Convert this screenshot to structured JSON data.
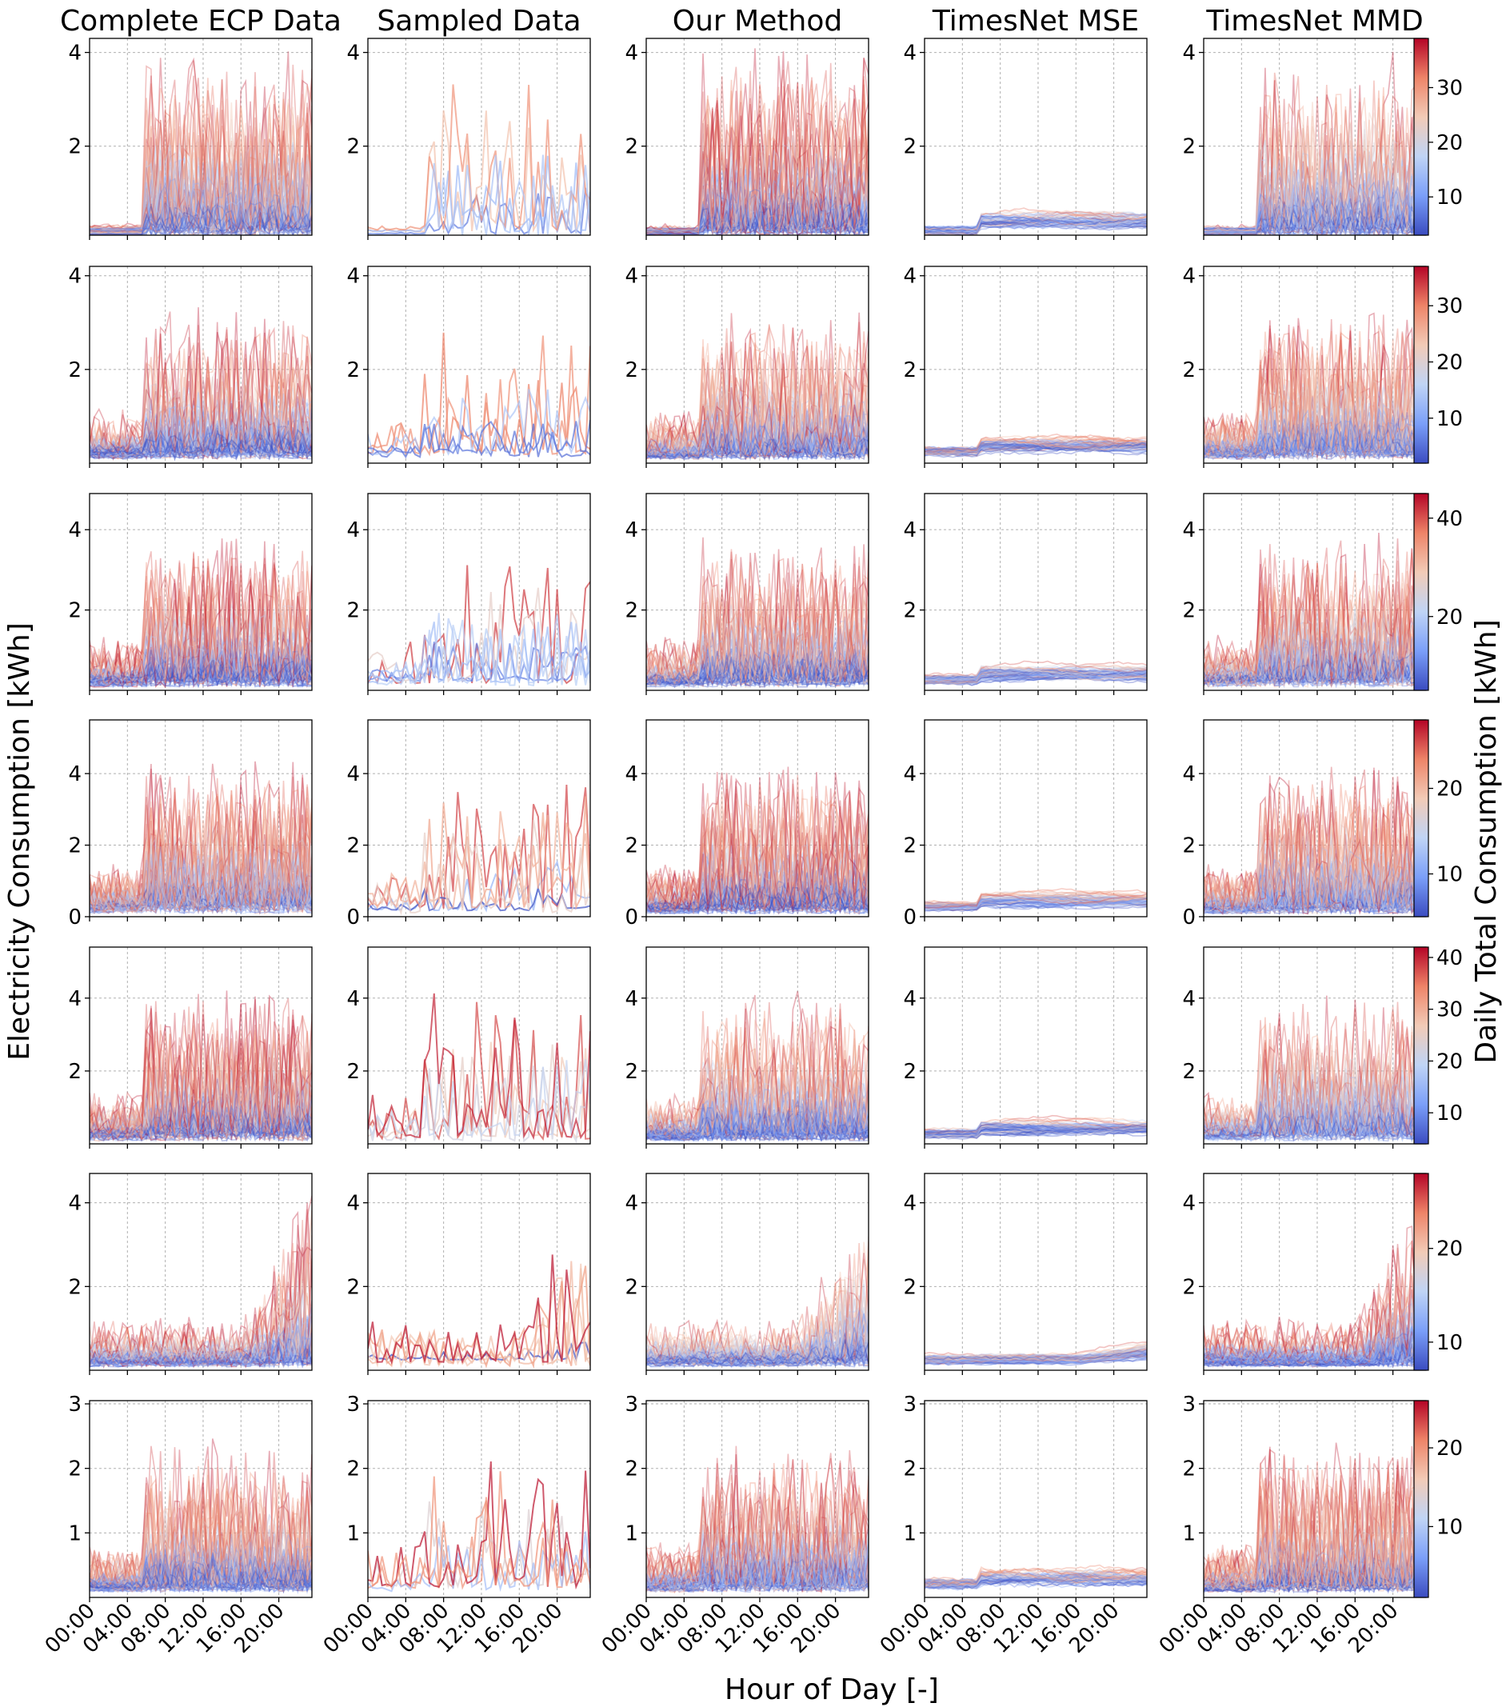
{
  "figure": {
    "column_titles": [
      "Complete ECP Data",
      "Sampled Data",
      "Our Method",
      "TimesNet MSE",
      "TimesNet MMD"
    ],
    "xlabel": "Hour of Day [-]",
    "ylabel": "Electricity Consumption [kWh]",
    "colorbar_label": "Daily Total Consumption [kWh]",
    "colormap": [
      "#3b4cc0",
      "#7b9ff9",
      "#c0d4f5",
      "#f2cbb7",
      "#ee8468",
      "#b40426"
    ]
  },
  "chart_data": [
    {
      "type": "line",
      "row": 1,
      "ylim": [
        0.1,
        4.3
      ],
      "yticks": [
        2,
        4
      ],
      "colorbar": {
        "range": [
          3,
          39
        ],
        "ticks": [
          10,
          20,
          30
        ]
      },
      "panels": [
        {
          "column": "Complete ECP Data",
          "description": "many daily profiles, flat near 0.1 at night, high 2-4 kWh from 06:00-23:00",
          "series_count": 90
        },
        {
          "column": "Sampled Data",
          "series_count": 5
        },
        {
          "column": "Our Method",
          "series_count": 90
        },
        {
          "column": "TimesNet MSE",
          "series_count": 60
        },
        {
          "column": "TimesNet MMD",
          "series_count": 90
        }
      ]
    },
    {
      "type": "line",
      "row": 2,
      "ylim": [
        0.0,
        4.2
      ],
      "yticks": [
        2,
        4
      ],
      "colorbar": {
        "range": [
          2,
          37
        ],
        "ticks": [
          10,
          20,
          30
        ]
      },
      "panels": [
        {
          "column": "Complete ECP Data",
          "series_count": 90
        },
        {
          "column": "Sampled Data",
          "series_count": 5
        },
        {
          "column": "Our Method",
          "series_count": 90
        },
        {
          "column": "TimesNet MSE",
          "series_count": 60
        },
        {
          "column": "TimesNet MMD",
          "series_count": 90
        }
      ]
    },
    {
      "type": "line",
      "row": 3,
      "ylim": [
        0.0,
        4.9
      ],
      "yticks": [
        2,
        4
      ],
      "colorbar": {
        "range": [
          5,
          45
        ],
        "ticks": [
          20,
          40
        ]
      },
      "panels": [
        {
          "column": "Complete ECP Data",
          "series_count": 90
        },
        {
          "column": "Sampled Data",
          "series_count": 7
        },
        {
          "column": "Our Method",
          "series_count": 90
        },
        {
          "column": "TimesNet MSE",
          "series_count": 60
        },
        {
          "column": "TimesNet MMD",
          "series_count": 90
        }
      ]
    },
    {
      "type": "line",
      "row": 4,
      "ylim": [
        0,
        5.5
      ],
      "yticks": [
        0,
        2,
        4
      ],
      "colorbar": {
        "range": [
          5,
          28
        ],
        "ticks": [
          10,
          20
        ]
      },
      "panels": [
        {
          "column": "Complete ECP Data",
          "series_count": 90
        },
        {
          "column": "Sampled Data",
          "series_count": 6
        },
        {
          "column": "Our Method",
          "series_count": 90
        },
        {
          "column": "TimesNet MSE",
          "series_count": 60
        },
        {
          "column": "TimesNet MMD",
          "series_count": 90
        }
      ]
    },
    {
      "type": "line",
      "row": 5,
      "ylim": [
        0.0,
        5.4
      ],
      "yticks": [
        2,
        4
      ],
      "colorbar": {
        "range": [
          4,
          42
        ],
        "ticks": [
          10,
          20,
          30,
          40
        ]
      },
      "panels": [
        {
          "column": "Complete ECP Data",
          "series_count": 90
        },
        {
          "column": "Sampled Data",
          "series_count": 6
        },
        {
          "column": "Our Method",
          "series_count": 90
        },
        {
          "column": "TimesNet MSE",
          "series_count": 60
        },
        {
          "column": "TimesNet MMD",
          "series_count": 90
        }
      ]
    },
    {
      "type": "line",
      "row": 6,
      "ylim": [
        0.0,
        4.7
      ],
      "yticks": [
        2,
        4
      ],
      "colorbar": {
        "range": [
          7,
          28
        ],
        "ticks": [
          10,
          20
        ]
      },
      "panels": [
        {
          "column": "Complete ECP Data",
          "series_count": 90
        },
        {
          "column": "Sampled Data",
          "series_count": 6
        },
        {
          "column": "Our Method",
          "series_count": 90
        },
        {
          "column": "TimesNet MSE",
          "series_count": 60
        },
        {
          "column": "TimesNet MMD",
          "series_count": 90
        }
      ]
    },
    {
      "type": "line",
      "row": 7,
      "ylim": [
        0.0,
        3.05
      ],
      "yticks": [
        1,
        2,
        3
      ],
      "colorbar": {
        "range": [
          1,
          26
        ],
        "ticks": [
          10,
          20
        ]
      },
      "panels": [
        {
          "column": "Complete ECP Data",
          "series_count": 90
        },
        {
          "column": "Sampled Data",
          "series_count": 5
        },
        {
          "column": "Our Method",
          "series_count": 90
        },
        {
          "column": "TimesNet MSE",
          "series_count": 60
        },
        {
          "column": "TimesNet MMD",
          "series_count": 90
        }
      ]
    }
  ],
  "xaxis": {
    "xlim": [
      0,
      23.5
    ],
    "ticks": [
      0,
      4,
      8,
      12,
      16,
      20
    ],
    "tick_labels": [
      "00:00",
      "04:00",
      "08:00",
      "12:00",
      "16:00",
      "20:00"
    ]
  }
}
